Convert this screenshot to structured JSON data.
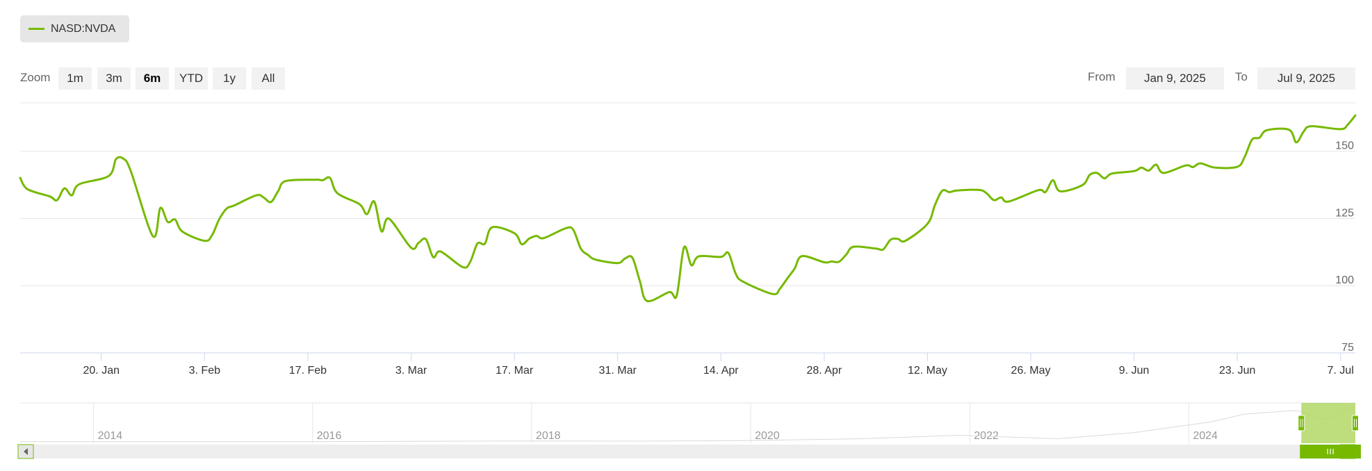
{
  "legend": {
    "series_name": "NASD:NVDA"
  },
  "range_selector": {
    "zoom_label": "Zoom",
    "buttons": [
      "1m",
      "3m",
      "6m",
      "YTD",
      "1y",
      "All"
    ],
    "selected": "6m",
    "from_label": "From",
    "from_value": "Jan 9, 2025",
    "to_label": "To",
    "to_value": "Jul 9, 2025"
  },
  "colors": {
    "series": "#76b900",
    "navigator_mask": "#b3d766",
    "handle": "#76b900"
  },
  "chart_data": {
    "type": "line",
    "title": "",
    "xlabel": "",
    "ylabel": "",
    "y_ticks": [
      75,
      100,
      125,
      150
    ],
    "ylim": [
      75,
      168
    ],
    "x_range": [
      "2025-01-09",
      "2025-07-09"
    ],
    "x_tick_labels": [
      "20. Jan",
      "3. Feb",
      "17. Feb",
      "3. Mar",
      "17. Mar",
      "31. Mar",
      "14. Apr",
      "28. Apr",
      "12. May",
      "26. May",
      "9. Jun",
      "23. Jun",
      "7. Jul"
    ],
    "x_tick_dates": [
      "2025-01-20",
      "2025-02-03",
      "2025-02-17",
      "2025-03-03",
      "2025-03-17",
      "2025-03-31",
      "2025-04-14",
      "2025-04-28",
      "2025-05-12",
      "2025-05-26",
      "2025-06-09",
      "2025-06-23",
      "2025-07-07"
    ],
    "grid": true,
    "series": [
      {
        "name": "NASD:NVDA",
        "points": [
          [
            "2025-01-09",
            140.1
          ],
          [
            "2025-01-10",
            135.9
          ],
          [
            "2025-01-13",
            133.2
          ],
          [
            "2025-01-14",
            131.8
          ],
          [
            "2025-01-15",
            136.2
          ],
          [
            "2025-01-16",
            133.6
          ],
          [
            "2025-01-17",
            137.7
          ],
          [
            "2025-01-21",
            140.8
          ],
          [
            "2025-01-22",
            147.1
          ],
          [
            "2025-01-23",
            147.2
          ],
          [
            "2025-01-24",
            142.6
          ],
          [
            "2025-01-27",
            118.4
          ],
          [
            "2025-01-28",
            128.9
          ],
          [
            "2025-01-29",
            123.7
          ],
          [
            "2025-01-30",
            124.6
          ],
          [
            "2025-01-31",
            120.1
          ],
          [
            "2025-02-03",
            116.7
          ],
          [
            "2025-02-04",
            118.7
          ],
          [
            "2025-02-05",
            124.8
          ],
          [
            "2025-02-06",
            128.7
          ],
          [
            "2025-02-07",
            129.8
          ],
          [
            "2025-02-10",
            133.6
          ],
          [
            "2025-02-11",
            132.8
          ],
          [
            "2025-02-12",
            131.1
          ],
          [
            "2025-02-13",
            135.3
          ],
          [
            "2025-02-14",
            138.9
          ],
          [
            "2025-02-18",
            139.4
          ],
          [
            "2025-02-19",
            139.2
          ],
          [
            "2025-02-20",
            140.1
          ],
          [
            "2025-02-21",
            134.4
          ],
          [
            "2025-02-24",
            130.3
          ],
          [
            "2025-02-25",
            126.6
          ],
          [
            "2025-02-26",
            131.3
          ],
          [
            "2025-02-27",
            120.2
          ],
          [
            "2025-02-28",
            124.9
          ],
          [
            "2025-03-03",
            114.1
          ],
          [
            "2025-03-04",
            115.9
          ],
          [
            "2025-03-05",
            117.3
          ],
          [
            "2025-03-06",
            110.6
          ],
          [
            "2025-03-07",
            112.7
          ],
          [
            "2025-03-10",
            106.9
          ],
          [
            "2025-03-11",
            108.8
          ],
          [
            "2025-03-12",
            115.7
          ],
          [
            "2025-03-13",
            115.6
          ],
          [
            "2025-03-14",
            121.7
          ],
          [
            "2025-03-17",
            119.5
          ],
          [
            "2025-03-18",
            115.4
          ],
          [
            "2025-03-19",
            117.5
          ],
          [
            "2025-03-20",
            118.5
          ],
          [
            "2025-03-21",
            117.7
          ],
          [
            "2025-03-24",
            121.4
          ],
          [
            "2025-03-25",
            120.7
          ],
          [
            "2025-03-26",
            113.8
          ],
          [
            "2025-03-27",
            111.4
          ],
          [
            "2025-03-28",
            109.7
          ],
          [
            "2025-03-31",
            108.4
          ],
          [
            "2025-04-01",
            110.1
          ],
          [
            "2025-04-02",
            110.4
          ],
          [
            "2025-04-03",
            101.8
          ],
          [
            "2025-04-04",
            94.3
          ],
          [
            "2025-04-07",
            97.6
          ],
          [
            "2025-04-08",
            96.3
          ],
          [
            "2025-04-09",
            114.3
          ],
          [
            "2025-04-10",
            107.6
          ],
          [
            "2025-04-11",
            110.9
          ],
          [
            "2025-04-14",
            110.7
          ],
          [
            "2025-04-15",
            112.2
          ],
          [
            "2025-04-16",
            104.5
          ],
          [
            "2025-04-17",
            101.5
          ],
          [
            "2025-04-21",
            96.9
          ],
          [
            "2025-04-22",
            98.9
          ],
          [
            "2025-04-23",
            102.7
          ],
          [
            "2025-04-24",
            106.4
          ],
          [
            "2025-04-25",
            111.0
          ],
          [
            "2025-04-28",
            108.7
          ],
          [
            "2025-04-29",
            109.0
          ],
          [
            "2025-04-30",
            108.9
          ],
          [
            "2025-05-01",
            111.6
          ],
          [
            "2025-05-02",
            114.5
          ],
          [
            "2025-05-05",
            113.8
          ],
          [
            "2025-05-06",
            113.5
          ],
          [
            "2025-05-07",
            117.1
          ],
          [
            "2025-05-08",
            117.4
          ],
          [
            "2025-05-09",
            116.7
          ],
          [
            "2025-05-12",
            123.0
          ],
          [
            "2025-05-13",
            129.9
          ],
          [
            "2025-05-14",
            135.3
          ],
          [
            "2025-05-15",
            134.8
          ],
          [
            "2025-05-16",
            135.4
          ],
          [
            "2025-05-19",
            135.6
          ],
          [
            "2025-05-20",
            134.4
          ],
          [
            "2025-05-21",
            131.8
          ],
          [
            "2025-05-22",
            132.8
          ],
          [
            "2025-05-23",
            131.3
          ],
          [
            "2025-05-27",
            135.5
          ],
          [
            "2025-05-28",
            134.8
          ],
          [
            "2025-05-29",
            139.2
          ],
          [
            "2025-05-30",
            135.1
          ],
          [
            "2025-06-02",
            137.4
          ],
          [
            "2025-06-03",
            141.2
          ],
          [
            "2025-06-04",
            141.9
          ],
          [
            "2025-06-05",
            139.9
          ],
          [
            "2025-06-06",
            141.7
          ],
          [
            "2025-06-09",
            142.6
          ],
          [
            "2025-06-10",
            143.9
          ],
          [
            "2025-06-11",
            142.8
          ],
          [
            "2025-06-12",
            145.0
          ],
          [
            "2025-06-13",
            141.9
          ],
          [
            "2025-06-16",
            144.7
          ],
          [
            "2025-06-17",
            144.1
          ],
          [
            "2025-06-18",
            145.5
          ],
          [
            "2025-06-20",
            143.9
          ],
          [
            "2025-06-23",
            144.2
          ],
          [
            "2025-06-24",
            147.9
          ],
          [
            "2025-06-25",
            154.3
          ],
          [
            "2025-06-26",
            155.0
          ],
          [
            "2025-06-27",
            157.8
          ],
          [
            "2025-06-30",
            158.0
          ],
          [
            "2025-07-01",
            153.3
          ],
          [
            "2025-07-02",
            157.3
          ],
          [
            "2025-07-03",
            159.3
          ],
          [
            "2025-07-07",
            158.2
          ],
          [
            "2025-07-08",
            160.0
          ],
          [
            "2025-07-09",
            163.3
          ]
        ]
      }
    ]
  },
  "navigator": {
    "year_labels": [
      "2014",
      "2016",
      "2018",
      "2020",
      "2022",
      "2024"
    ],
    "years": [
      2014,
      2016,
      2018,
      2020,
      2022,
      2024
    ]
  }
}
